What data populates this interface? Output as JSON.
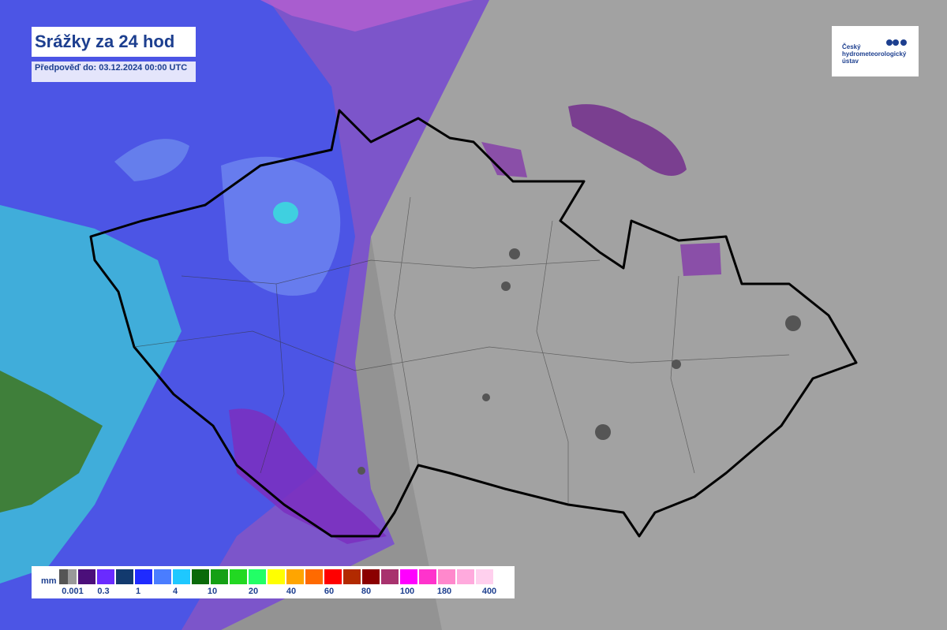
{
  "header": {
    "title": "Srážky za 24 hod",
    "subtitle": "Předpověď do: 03.12.2024 00:00 UTC"
  },
  "logo": {
    "text": "Český hydrometeorologický ústav"
  },
  "legend": {
    "unit": "mm",
    "colors": [
      "#6e6e6e",
      "#4b0f7a",
      "#6a2bff",
      "#123a6e",
      "#1f2bff",
      "#4a7dff",
      "#1ec8ff",
      "#0a6a0a",
      "#14a014",
      "#22d822",
      "#22ff66",
      "#ffff00",
      "#ffa500",
      "#ff6a00",
      "#ff0000",
      "#b22a00",
      "#8b0000",
      "#a8326e",
      "#ff00ff",
      "#ff33cc",
      "#ff88cc",
      "#ffaadd",
      "#ffd0ee"
    ],
    "labels": [
      "0.001",
      "0.3",
      "1",
      "4",
      "10",
      "20",
      "40",
      "60",
      "80",
      "100",
      "180",
      "400"
    ]
  }
}
